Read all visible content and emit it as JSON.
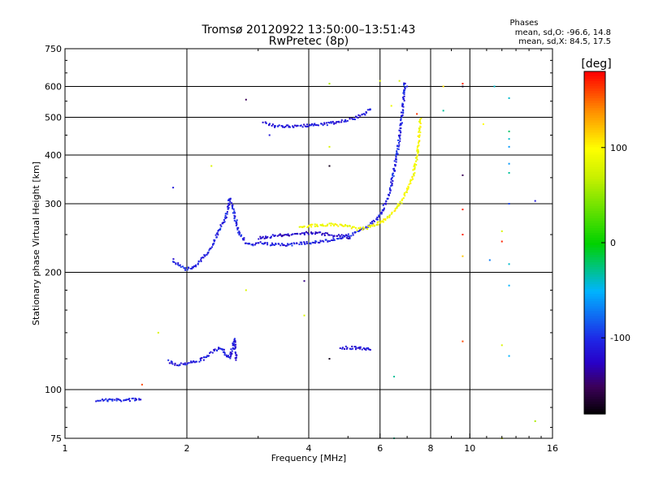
{
  "chart_data": {
    "type": "scatter",
    "title": "Tromsø 20120922 13:50:00–13:51:43",
    "subtitle": "RwPretec (8p)",
    "xlabel": "Frequency [MHz]",
    "ylabel": "Stationary phase Virtual Height [km]",
    "x_scale": "log2",
    "y_scale": "log",
    "xlim": [
      1,
      16
    ],
    "ylim": [
      75,
      750
    ],
    "x_ticks": [
      "1",
      "2",
      "4",
      "6",
      "8",
      "10",
      "16"
    ],
    "x_tick_values": [
      1,
      2,
      4,
      6,
      8,
      10,
      16
    ],
    "y_ticks": [
      "75",
      "100",
      "200",
      "300",
      "400",
      "500",
      "600",
      "750"
    ],
    "y_tick_values": [
      75,
      100,
      200,
      300,
      400,
      500,
      600,
      750
    ],
    "grid": true,
    "stats": {
      "heading": "Phases",
      "line_o": "mean, sd,O: -96.6, 14.8",
      "line_x": "mean, sd,X:  84.5, 17.5"
    },
    "colorbar": {
      "unit": "[deg]",
      "range": [
        -180,
        180
      ],
      "ticks": [
        "100",
        "0",
        "-100"
      ],
      "tick_values": [
        100,
        0,
        -100
      ]
    },
    "traces": [
      {
        "mode": "O",
        "phase": -105,
        "points": [
          [
            1.2,
            94
          ],
          [
            1.3,
            94
          ],
          [
            1.4,
            94
          ],
          [
            1.5,
            94.5
          ],
          [
            1.55,
            95
          ]
        ]
      },
      {
        "mode": "O",
        "phase": -110,
        "points": [
          [
            1.8,
            118
          ],
          [
            1.9,
            116
          ],
          [
            2.0,
            117
          ],
          [
            2.1,
            118
          ],
          [
            2.2,
            120
          ],
          [
            2.3,
            124
          ],
          [
            2.4,
            128
          ],
          [
            2.45,
            127
          ],
          [
            2.5,
            123
          ],
          [
            2.55,
            120
          ],
          [
            2.6,
            130
          ],
          [
            2.62,
            135
          ],
          [
            2.65,
            118
          ]
        ]
      },
      {
        "mode": "O",
        "phase": -105,
        "points": [
          [
            1.85,
            215
          ],
          [
            1.95,
            207
          ],
          [
            2.0,
            203
          ],
          [
            2.1,
            208
          ],
          [
            2.2,
            218
          ],
          [
            2.3,
            233
          ],
          [
            2.4,
            256
          ],
          [
            2.5,
            278
          ],
          [
            2.55,
            310
          ],
          [
            2.6,
            290
          ],
          [
            2.7,
            250
          ],
          [
            2.8,
            238
          ],
          [
            2.9,
            236
          ],
          [
            3.0,
            238
          ],
          [
            3.2,
            236
          ],
          [
            3.4,
            235
          ],
          [
            3.6,
            236
          ],
          [
            3.8,
            237
          ],
          [
            4.0,
            238
          ],
          [
            4.3,
            240
          ],
          [
            4.6,
            243
          ],
          [
            5.0,
            248
          ],
          [
            5.3,
            255
          ],
          [
            5.6,
            262
          ],
          [
            5.9,
            275
          ],
          [
            6.1,
            290
          ],
          [
            6.3,
            315
          ],
          [
            6.45,
            350
          ],
          [
            6.6,
            400
          ],
          [
            6.75,
            470
          ],
          [
            6.85,
            550
          ],
          [
            6.9,
            620
          ]
        ]
      },
      {
        "mode": "O",
        "phase": -112,
        "points": [
          [
            3.1,
            485
          ],
          [
            3.3,
            475
          ],
          [
            3.5,
            474
          ],
          [
            3.7,
            475
          ],
          [
            3.9,
            476
          ],
          [
            4.1,
            477
          ],
          [
            4.3,
            479
          ],
          [
            4.6,
            484
          ],
          [
            4.9,
            490
          ],
          [
            5.2,
            497
          ],
          [
            5.5,
            510
          ],
          [
            5.7,
            530
          ]
        ]
      },
      {
        "mode": "X",
        "phase": 95,
        "points": [
          [
            3.8,
            262
          ],
          [
            4.1,
            264
          ],
          [
            4.4,
            265
          ],
          [
            4.7,
            265
          ],
          [
            5.0,
            262
          ],
          [
            5.3,
            258
          ],
          [
            5.7,
            262
          ],
          [
            6.0,
            268
          ],
          [
            6.4,
            282
          ],
          [
            6.8,
            305
          ],
          [
            7.2,
            345
          ],
          [
            7.4,
            395
          ],
          [
            7.5,
            450
          ],
          [
            7.55,
            500
          ]
        ]
      },
      {
        "mode": "O",
        "phase": -120,
        "points": [
          [
            3.0,
            245
          ],
          [
            3.3,
            248
          ],
          [
            3.6,
            250
          ],
          [
            3.9,
            252
          ],
          [
            4.2,
            252
          ],
          [
            4.5,
            250
          ],
          [
            4.8,
            248
          ],
          [
            5.1,
            245
          ]
        ]
      },
      {
        "mode": "O",
        "phase": -115,
        "points": [
          [
            4.8,
            128
          ],
          [
            5.0,
            128
          ],
          [
            5.2,
            128
          ],
          [
            5.6,
            127
          ],
          [
            5.7,
            128
          ]
        ]
      }
    ],
    "scatter_points": [
      {
        "x": 4.5,
        "y": 610,
        "phase": 60
      },
      {
        "x": 9.6,
        "y": 610,
        "phase": 170
      },
      {
        "x": 9.6,
        "y": 600,
        "phase": -170
      },
      {
        "x": 8.6,
        "y": 600,
        "phase": 110
      },
      {
        "x": 11.5,
        "y": 600,
        "phase": -40
      },
      {
        "x": 12.5,
        "y": 560,
        "phase": -40
      },
      {
        "x": 8.6,
        "y": 520,
        "phase": -30
      },
      {
        "x": 7.4,
        "y": 510,
        "phase": 165
      },
      {
        "x": 10.8,
        "y": 480,
        "phase": 100
      },
      {
        "x": 12.5,
        "y": 460,
        "phase": -20
      },
      {
        "x": 12.5,
        "y": 440,
        "phase": -40
      },
      {
        "x": 12.5,
        "y": 420,
        "phase": -60
      },
      {
        "x": 4.5,
        "y": 420,
        "phase": 80
      },
      {
        "x": 12.5,
        "y": 380,
        "phase": -60
      },
      {
        "x": 12.5,
        "y": 360,
        "phase": -30
      },
      {
        "x": 4.5,
        "y": 375,
        "phase": -170
      },
      {
        "x": 9.6,
        "y": 355,
        "phase": -150
      },
      {
        "x": 2.3,
        "y": 375,
        "phase": 80
      },
      {
        "x": 1.85,
        "y": 330,
        "phase": -110
      },
      {
        "x": 12.5,
        "y": 300,
        "phase": -90
      },
      {
        "x": 14.5,
        "y": 305,
        "phase": -110
      },
      {
        "x": 9.6,
        "y": 290,
        "phase": 170
      },
      {
        "x": 9.6,
        "y": 250,
        "phase": 170
      },
      {
        "x": 12.0,
        "y": 255,
        "phase": 80
      },
      {
        "x": 12.0,
        "y": 240,
        "phase": 170
      },
      {
        "x": 11.2,
        "y": 215,
        "phase": -70
      },
      {
        "x": 12.5,
        "y": 210,
        "phase": -40
      },
      {
        "x": 9.6,
        "y": 220,
        "phase": 120
      },
      {
        "x": 3.9,
        "y": 190,
        "phase": -140
      },
      {
        "x": 2.8,
        "y": 180,
        "phase": 80
      },
      {
        "x": 12.5,
        "y": 185,
        "phase": -50
      },
      {
        "x": 3.9,
        "y": 155,
        "phase": 80
      },
      {
        "x": 1.7,
        "y": 140,
        "phase": 80
      },
      {
        "x": 9.6,
        "y": 133,
        "phase": 160
      },
      {
        "x": 12.0,
        "y": 130,
        "phase": 80
      },
      {
        "x": 4.5,
        "y": 120,
        "phase": -170
      },
      {
        "x": 12.5,
        "y": 122,
        "phase": -50
      },
      {
        "x": 6.5,
        "y": 108,
        "phase": -30
      },
      {
        "x": 1.55,
        "y": 103,
        "phase": 160
      },
      {
        "x": 14.5,
        "y": 83,
        "phase": 60
      },
      {
        "x": 6.5,
        "y": 75,
        "phase": -30
      },
      {
        "x": 12.0,
        "y": 75,
        "phase": 80
      },
      {
        "x": 2.8,
        "y": 555,
        "phase": -150
      },
      {
        "x": 3.2,
        "y": 450,
        "phase": -110
      },
      {
        "x": 6.0,
        "y": 620,
        "phase": 80
      },
      {
        "x": 6.7,
        "y": 620,
        "phase": 80
      },
      {
        "x": 6.4,
        "y": 535,
        "phase": 90
      },
      {
        "x": 7.0,
        "y": 600,
        "phase": -110
      }
    ]
  }
}
